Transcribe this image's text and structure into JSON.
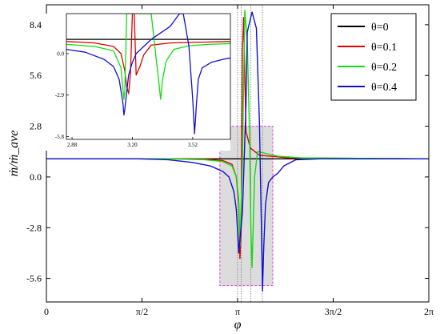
{
  "chart_data": {
    "type": "line",
    "xlabel": "φ",
    "ylabel": "ṁ/ṁ_ave",
    "xlim": [
      0,
      6.2832
    ],
    "ylim": [
      -6.9,
      9.5
    ],
    "x_ticks": [
      {
        "v": 0,
        "label": "0"
      },
      {
        "v": 1.5708,
        "label": "π/2"
      },
      {
        "v": 3.1416,
        "label": "π"
      },
      {
        "v": 4.7124,
        "label": "3π/2"
      },
      {
        "v": 6.2832,
        "label": "2π"
      }
    ],
    "y_ticks": [
      {
        "v": 8.4,
        "label": "8.4"
      },
      {
        "v": 5.6,
        "label": "5.6"
      },
      {
        "v": 2.8,
        "label": "2.8"
      },
      {
        "v": 0.0,
        "label": "0.0"
      },
      {
        "v": -2.8,
        "label": "-2.8"
      },
      {
        "v": -5.6,
        "label": "-5.6"
      }
    ],
    "legend_position": "top-right",
    "series": [
      {
        "name": "θ=0",
        "color": "#000000",
        "x": [
          0,
          2.9,
          3.0,
          3.05,
          3.1,
          3.15,
          3.2,
          3.3,
          3.5,
          6.2832
        ],
        "y": [
          1.0,
          1.0,
          1.0,
          1.0,
          1.0,
          1.0,
          1.0,
          1.0,
          1.0,
          1.0
        ]
      },
      {
        "name": "θ=0.1",
        "color": "#e00000",
        "x": [
          0,
          2.0,
          2.6,
          2.9,
          3.05,
          3.12,
          3.16,
          3.18,
          3.2,
          3.22,
          3.24,
          3.28,
          3.35,
          3.5,
          4.0,
          6.2832
        ],
        "y": [
          1.0,
          1.0,
          0.98,
          0.9,
          0.7,
          0.0,
          -1.5,
          -4.5,
          -3.0,
          7.0,
          8.8,
          2.5,
          1.6,
          1.2,
          1.05,
          1.0
        ]
      },
      {
        "name": "θ=0.2",
        "color": "#10dd10",
        "x": [
          0,
          2.0,
          2.6,
          2.9,
          3.05,
          3.12,
          3.16,
          3.18,
          3.22,
          3.26,
          3.3,
          3.34,
          3.36,
          3.38,
          3.42,
          3.47,
          3.6,
          3.8,
          4.2,
          6.2832
        ],
        "y": [
          1.0,
          1.0,
          0.95,
          0.85,
          0.6,
          0.0,
          -1.2,
          -3.8,
          0.8,
          9.2,
          7.5,
          2.0,
          -2.8,
          -5.0,
          0.0,
          1.4,
          1.3,
          1.15,
          1.05,
          1.0
        ]
      },
      {
        "name": "θ=0.4",
        "color": "#1010d0",
        "x": [
          0,
          1.5,
          2.0,
          2.4,
          2.7,
          2.9,
          3.0,
          3.08,
          3.12,
          3.15,
          3.16,
          3.17,
          3.22,
          3.28,
          3.3,
          3.38,
          3.45,
          3.5,
          3.54,
          3.55,
          3.57,
          3.6,
          3.65,
          3.72,
          3.8,
          3.9,
          4.1,
          4.5,
          6.2832
        ],
        "y": [
          1.0,
          1.0,
          0.95,
          0.8,
          0.6,
          0.3,
          0.0,
          -0.8,
          -1.8,
          -3.5,
          -4.2,
          -3.8,
          -2.0,
          4.0,
          8.0,
          9.1,
          8.2,
          3.0,
          -4.0,
          -6.3,
          -4.0,
          -1.5,
          -0.3,
          0.0,
          0.2,
          0.6,
          0.95,
          1.0,
          1.0
        ]
      }
    ],
    "inset": {
      "xlim": [
        2.85,
        3.72
      ],
      "ylim": [
        -6.0,
        2.8
      ],
      "x_ticks": [
        {
          "v": 2.88,
          "label": "2.88"
        },
        {
          "v": 3.2,
          "label": "3.20"
        },
        {
          "v": 3.52,
          "label": "3.52"
        }
      ],
      "y_ticks": [
        {
          "v": 0.0,
          "label": "0.0"
        },
        {
          "v": -2.9,
          "label": "-2.9"
        },
        {
          "v": -5.8,
          "label": "-5.8"
        }
      ],
      "series": [
        {
          "color": "#000000",
          "x": [
            2.85,
            3.72
          ],
          "y": [
            1.0,
            1.0
          ]
        },
        {
          "color": "#e00000",
          "x": [
            2.85,
            3.0,
            3.1,
            3.14,
            3.16,
            3.17,
            3.18,
            3.19,
            3.2,
            3.21,
            3.22,
            3.24,
            3.26,
            3.3,
            3.4,
            3.72
          ],
          "y": [
            0.85,
            0.75,
            0.5,
            0.0,
            -1.2,
            -2.3,
            -2.8,
            -1.4,
            2.8,
            2.8,
            -1.5,
            -0.9,
            -0.1,
            0.6,
            0.75,
            0.85
          ]
        },
        {
          "color": "#10dd10",
          "x": [
            2.85,
            3.0,
            3.1,
            3.14,
            3.15,
            3.155,
            3.16,
            3.17,
            3.3,
            3.33,
            3.34,
            3.35,
            3.36,
            3.38,
            3.42,
            3.5,
            3.6,
            3.72
          ],
          "y": [
            0.65,
            0.5,
            0.2,
            -1.0,
            -2.5,
            -3.2,
            -2.6,
            2.8,
            2.8,
            -0.8,
            -2.0,
            -3.2,
            -1.8,
            -0.5,
            0.3,
            0.55,
            0.65,
            0.7
          ]
        },
        {
          "color": "#1010d0",
          "x": [
            2.85,
            2.95,
            3.05,
            3.1,
            3.13,
            3.15,
            3.155,
            3.16,
            3.18,
            3.2,
            3.22,
            3.3,
            3.4,
            3.45,
            3.47,
            3.5,
            3.52,
            3.53,
            3.54,
            3.55,
            3.57,
            3.62,
            3.68,
            3.72
          ],
          "y": [
            0.3,
            0.1,
            -0.4,
            -0.9,
            -1.8,
            -3.5,
            -4.3,
            -3.9,
            -1.5,
            -0.6,
            0.0,
            1.0,
            1.9,
            2.8,
            2.8,
            0.5,
            -3.2,
            -5.6,
            -3.5,
            -1.8,
            -1.0,
            -0.6,
            -0.4,
            -0.3
          ]
        }
      ]
    }
  }
}
